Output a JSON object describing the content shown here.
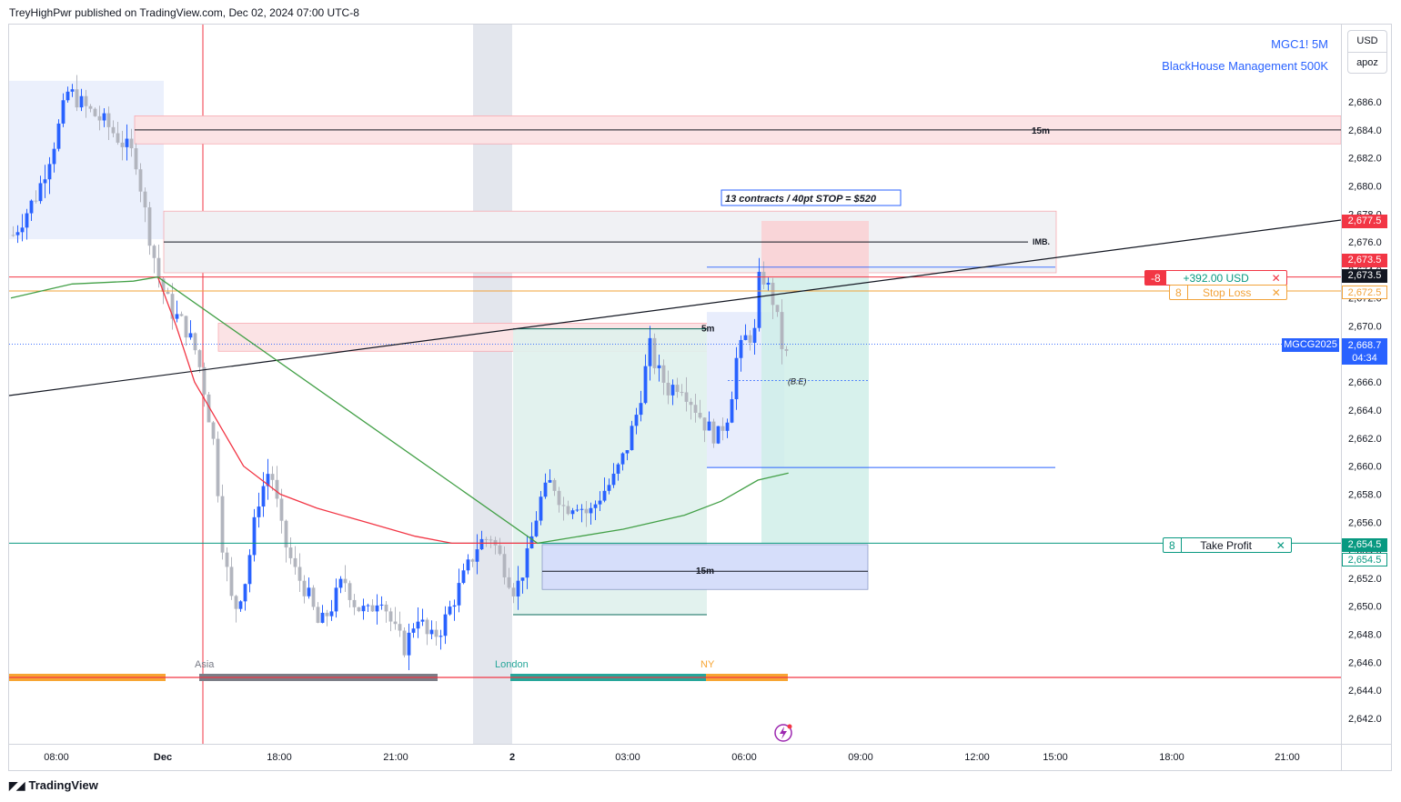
{
  "header": {
    "text": "TreyHighPwr published on TradingView.com, Dec 02, 2024 07:00 UTC-8"
  },
  "legend": {
    "symbol": "MGC1! 5M",
    "study": "BlackHouse Management 500K"
  },
  "currency_box": {
    "currency": "USD",
    "scale_label": "apoz"
  },
  "annotations": {
    "contracts_note": "13 contracts / 40pt STOP = $520",
    "imb_label": "IMB.",
    "label_15m_top": "15m",
    "label_5m": "5m",
    "label_15m_bottom": "15m",
    "be_label": "(B.E)",
    "session_asia": "Asia",
    "session_london": "London",
    "session_ny": "NY"
  },
  "position": {
    "qty": "-8",
    "pnl": "+392.00 USD",
    "stop_qty": "8",
    "stop_label": "Stop Loss",
    "tp_qty": "8",
    "tp_label": "Take Profit",
    "close_icon": "close-icon"
  },
  "price_tags": {
    "p1": "2,677.5",
    "p2": "2,673.5",
    "p3": "2,673.5",
    "p4": "2,672.5",
    "last_symbol": "MGCG2025",
    "last_price": "2,668.7",
    "countdown": "04:34",
    "tp_price": "2,654.5",
    "tp_price2": "2,654.5"
  },
  "footer": {
    "brand": "TradingView"
  },
  "colors": {
    "up": "#2962ff",
    "down": "#b2b5be",
    "ema_red": "#f23645",
    "ema_green": "#43a047",
    "zone_blue": "#e8edfc",
    "zone_red": "#fbe3e5",
    "tp_green": "#089981",
    "stop_orange": "#f2a33a",
    "accent": "#2962ff"
  },
  "chart_data": {
    "type": "candlestick",
    "symbol": "MGC1!",
    "timeframe": "5M",
    "y_ticks": [
      2642.0,
      2644.0,
      2646.0,
      2648.0,
      2650.0,
      2652.0,
      2654.0,
      2656.0,
      2658.0,
      2660.0,
      2662.0,
      2664.0,
      2666.0,
      2668.0,
      2670.0,
      2672.0,
      2674.0,
      2676.0,
      2678.0,
      2680.0,
      2682.0,
      2684.0,
      2686.0
    ],
    "y_tick_labels": [
      "2,642.0",
      "2,644.0",
      "2,646.0",
      "2,648.0",
      "2,650.0",
      "2,652.0",
      "2,654.0",
      "2,656.0",
      "2,658.0",
      "2,660.0",
      "2,662.0",
      "2,664.0",
      "2,666.0",
      "2,668.0",
      "2,670.0",
      "2,672.0",
      "2,674.0",
      "2,676.0",
      "2,678.0",
      "2,680.0",
      "2,682.0",
      "2,684.0",
      "2,686.0"
    ],
    "x_tick_labels": [
      "08:00",
      "Dec",
      "18:00",
      "21:00",
      "2",
      "03:00",
      "06:00",
      "09:00",
      "12:00",
      "15:00",
      "18:00",
      "21:00"
    ],
    "ylim": [
      2640.8,
      2688.8
    ],
    "levels": {
      "entry": 2673.5,
      "stop_loss": 2672.5,
      "take_profit": 2654.5,
      "last": 2668.7,
      "imb": 2676.0,
      "fifteen_min_top": 2684.0,
      "fifteen_min_bottom": 2652.5,
      "five_min": 2669.4,
      "break_even": 2666.5,
      "lower_blue_line": 2659.9
    },
    "price_path": [
      [
        0,
        2676.5
      ],
      [
        4,
        2679.5
      ],
      [
        7,
        2683.5
      ],
      [
        9,
        2686.8
      ],
      [
        12,
        2685.5
      ],
      [
        15,
        2684.5
      ],
      [
        17,
        2683.5
      ],
      [
        20,
        2682.0
      ],
      [
        22,
        2677.0
      ],
      [
        24,
        2673.0
      ],
      [
        26,
        2671.0
      ],
      [
        28,
        2670.0
      ],
      [
        30,
        2668.0
      ],
      [
        31,
        2666.0
      ],
      [
        33,
        2661.0
      ],
      [
        34,
        2655.0
      ],
      [
        36,
        2649.5
      ],
      [
        38,
        2652.0
      ],
      [
        40,
        2657.5
      ],
      [
        42,
        2660.0
      ],
      [
        44,
        2655.0
      ],
      [
        46,
        2652.5
      ],
      [
        48,
        2651.0
      ],
      [
        50,
        2648.5
      ],
      [
        52,
        2650.0
      ],
      [
        54,
        2652.0
      ],
      [
        56,
        2650.0
      ],
      [
        58,
        2649.5
      ],
      [
        60,
        2651.0
      ],
      [
        62,
        2648.5
      ],
      [
        64,
        2647.0
      ],
      [
        66,
        2649.5
      ],
      [
        68,
        2647.5
      ],
      [
        70,
        2648.5
      ],
      [
        72,
        2650.5
      ],
      [
        74,
        2652.5
      ],
      [
        76,
        2654.5
      ],
      [
        78,
        2655.0
      ],
      [
        80,
        2653.0
      ],
      [
        82,
        2651.0
      ],
      [
        84,
        2653.5
      ],
      [
        86,
        2657.5
      ],
      [
        88,
        2659.0
      ],
      [
        90,
        2657.0
      ],
      [
        92,
        2657.5
      ],
      [
        94,
        2656.5
      ],
      [
        96,
        2658.0
      ],
      [
        98,
        2659.0
      ],
      [
        100,
        2661.0
      ],
      [
        102,
        2664.0
      ],
      [
        104,
        2668.5
      ],
      [
        105,
        2667.0
      ],
      [
        107,
        2665.5
      ],
      [
        109,
        2666.0
      ],
      [
        111,
        2664.5
      ],
      [
        113,
        2663.0
      ],
      [
        115,
        2662.0
      ],
      [
        117,
        2664.0
      ],
      [
        118,
        2667.5
      ],
      [
        120,
        2669.5
      ],
      [
        121,
        2669.0
      ],
      [
        122,
        2674.0
      ],
      [
        123,
        2673.0
      ],
      [
        124,
        2672.0
      ],
      [
        125,
        2670.0
      ],
      [
        126,
        2667.5
      ],
      [
        127,
        2668.7
      ]
    ],
    "ema_red_path": [
      [
        24,
        2673.5
      ],
      [
        27,
        2670.0
      ],
      [
        30,
        2666.0
      ],
      [
        34,
        2663.0
      ],
      [
        38,
        2660.0
      ],
      [
        44,
        2658.0
      ],
      [
        50,
        2657.0
      ],
      [
        58,
        2656.0
      ],
      [
        66,
        2655.0
      ],
      [
        72,
        2654.5
      ],
      [
        80,
        2654.5
      ],
      [
        86,
        2654.5
      ]
    ],
    "ema_green_path": [
      [
        0,
        2672.0
      ],
      [
        10,
        2673.0
      ],
      [
        20,
        2673.2
      ],
      [
        24,
        2673.5
      ],
      [
        86,
        2654.5
      ],
      [
        100,
        2655.5
      ],
      [
        110,
        2656.5
      ],
      [
        116,
        2657.5
      ],
      [
        122,
        2659.0
      ],
      [
        127,
        2659.5
      ]
    ],
    "trendline": [
      [
        0,
        2667.0
      ],
      [
        218,
        2677.5
      ]
    ]
  }
}
